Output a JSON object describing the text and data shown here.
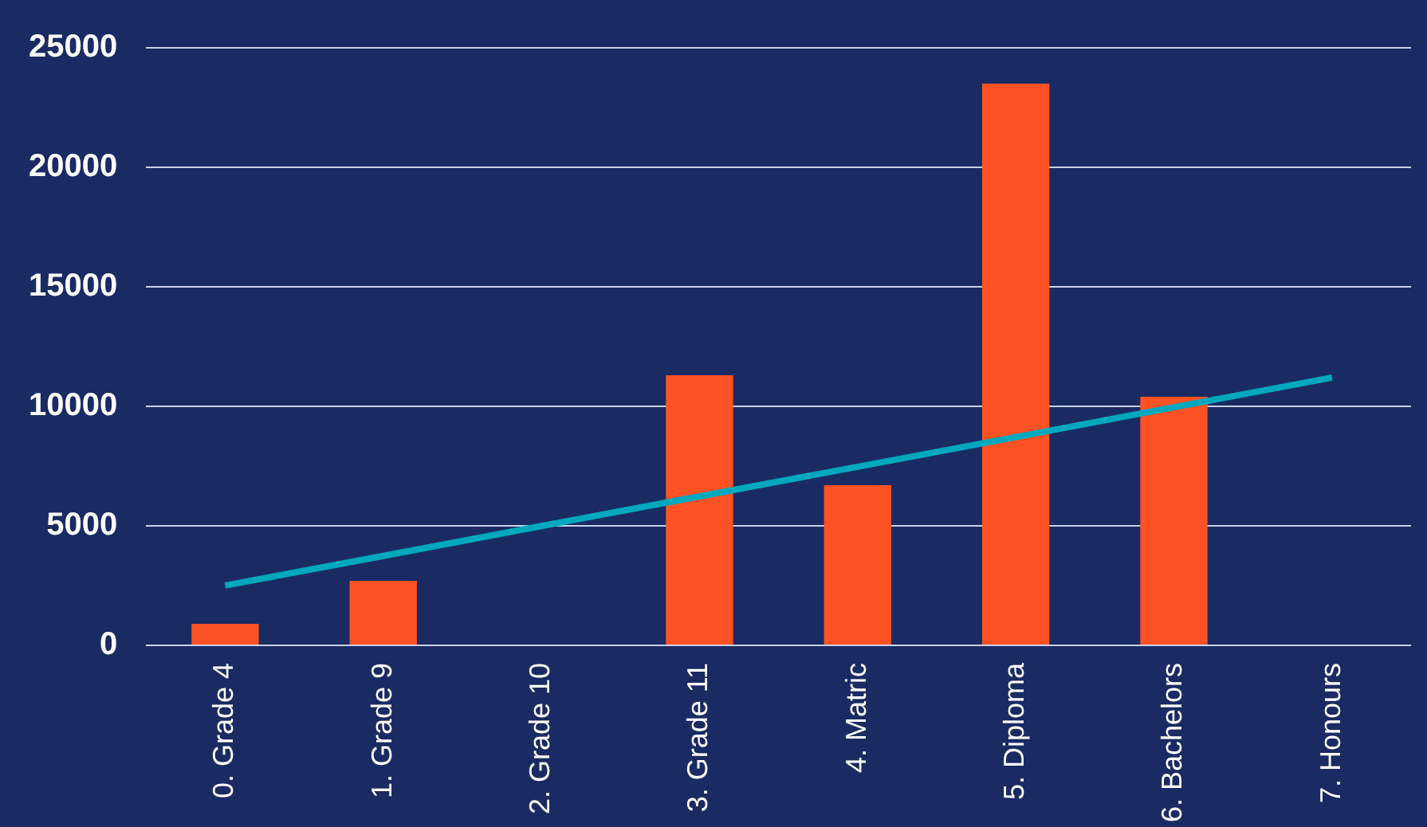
{
  "chart_data": {
    "type": "bar",
    "categories": [
      "0. Grade 4",
      "1. Grade 9",
      "2. Grade 10",
      "3. Grade 11",
      "4. Matric",
      "5. Diploma",
      "6. Bachelors",
      "7. Honours"
    ],
    "series": [
      {
        "color": "#ff5224",
        "values": [
          900,
          2700,
          0,
          11300,
          6700,
          23500,
          10400,
          0
        ]
      },
      {
        "type": "line",
        "color": "#00a8bd",
        "values": [
          2500,
          3740,
          4990,
          6230,
          7470,
          8710,
          9960,
          11200
        ]
      }
    ],
    "ylim": [
      0,
      25000
    ],
    "yticks": [
      0,
      5000,
      10000,
      15000,
      20000,
      25000
    ],
    "grid": "y",
    "legend": false,
    "marker": "none",
    "line_style": "solid"
  }
}
